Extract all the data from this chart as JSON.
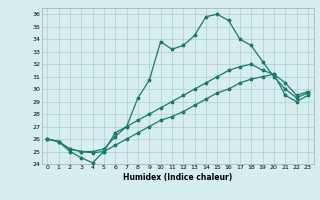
{
  "xlabel": "Humidex (Indice chaleur)",
  "ylabel": "",
  "background_color": "#d6eeed",
  "grid_color": "#b0cece",
  "line_color": "#1a7a6e",
  "xlim": [
    -0.5,
    23.5
  ],
  "ylim": [
    24,
    36.5
  ],
  "yticks": [
    24,
    25,
    26,
    27,
    28,
    29,
    30,
    31,
    32,
    33,
    34,
    35,
    36
  ],
  "xticks": [
    0,
    1,
    2,
    3,
    4,
    5,
    6,
    7,
    8,
    9,
    10,
    11,
    12,
    13,
    14,
    15,
    16,
    17,
    18,
    19,
    20,
    21,
    22,
    23
  ],
  "line1": [
    26.0,
    25.8,
    25.0,
    24.5,
    24.1,
    25.0,
    26.5,
    27.0,
    29.3,
    30.7,
    33.8,
    33.2,
    33.5,
    34.3,
    35.8,
    36.0,
    35.5,
    34.0,
    33.5,
    32.2,
    31.0,
    30.0,
    29.3,
    29.7
  ],
  "line2": [
    26.0,
    25.8,
    25.2,
    25.0,
    25.0,
    25.2,
    26.2,
    27.0,
    27.5,
    28.0,
    28.5,
    29.0,
    29.5,
    30.0,
    30.5,
    31.0,
    31.5,
    31.8,
    32.0,
    31.5,
    31.2,
    30.5,
    29.5,
    29.8
  ],
  "line3": [
    26.0,
    25.8,
    25.2,
    25.0,
    24.9,
    25.0,
    25.5,
    26.0,
    26.5,
    27.0,
    27.5,
    27.8,
    28.2,
    28.7,
    29.2,
    29.7,
    30.0,
    30.5,
    30.8,
    31.0,
    31.2,
    29.5,
    29.0,
    29.5
  ]
}
